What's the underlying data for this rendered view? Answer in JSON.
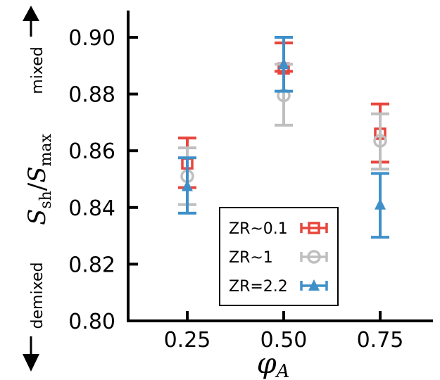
{
  "chart_data": {
    "type": "scatter",
    "x": [
      0.25,
      0.5,
      0.75
    ],
    "x_tick_labels": [
      "0.25",
      "0.50",
      "0.75"
    ],
    "y_tick_labels": [
      "0.80",
      "0.82",
      "0.84",
      "0.86",
      "0.88",
      "0.90"
    ],
    "xlabel": "φ_A",
    "xlabel_main": "φ",
    "xlabel_sub": "A",
    "ylabel": "S_sh/S_max",
    "ylabel_parts": {
      "s1": "S",
      "sub1": "sh",
      "slash": "/",
      "s2": "S",
      "sub2": "max"
    },
    "ylim": [
      0.8,
      0.91
    ],
    "xlim": [
      0.12,
      0.92
    ],
    "annotations": {
      "top": "mixed",
      "bottom": "demixed"
    },
    "grid": false,
    "legend_placement": "lower-right",
    "series": [
      {
        "name": "ZR~0.1",
        "color": "#e8453c",
        "marker": "square",
        "values": [
          0.8555,
          0.889,
          0.866
        ],
        "err_low": [
          0.847,
          0.888,
          0.856
        ],
        "err_high": [
          0.8645,
          0.898,
          0.8765
        ]
      },
      {
        "name": "ZR~1",
        "color": "#bfbfbf",
        "marker": "circle",
        "values": [
          0.851,
          0.8795,
          0.8635
        ],
        "err_low": [
          0.841,
          0.869,
          0.8535
        ],
        "err_high": [
          0.861,
          0.8905,
          0.873
        ]
      },
      {
        "name": "ZR=2.2",
        "color": "#3f8fc9",
        "marker": "triangle",
        "values": [
          0.8475,
          0.8905,
          0.841
        ],
        "err_low": [
          0.838,
          0.881,
          0.8295
        ],
        "err_high": [
          0.8575,
          0.9,
          0.852
        ]
      }
    ]
  }
}
